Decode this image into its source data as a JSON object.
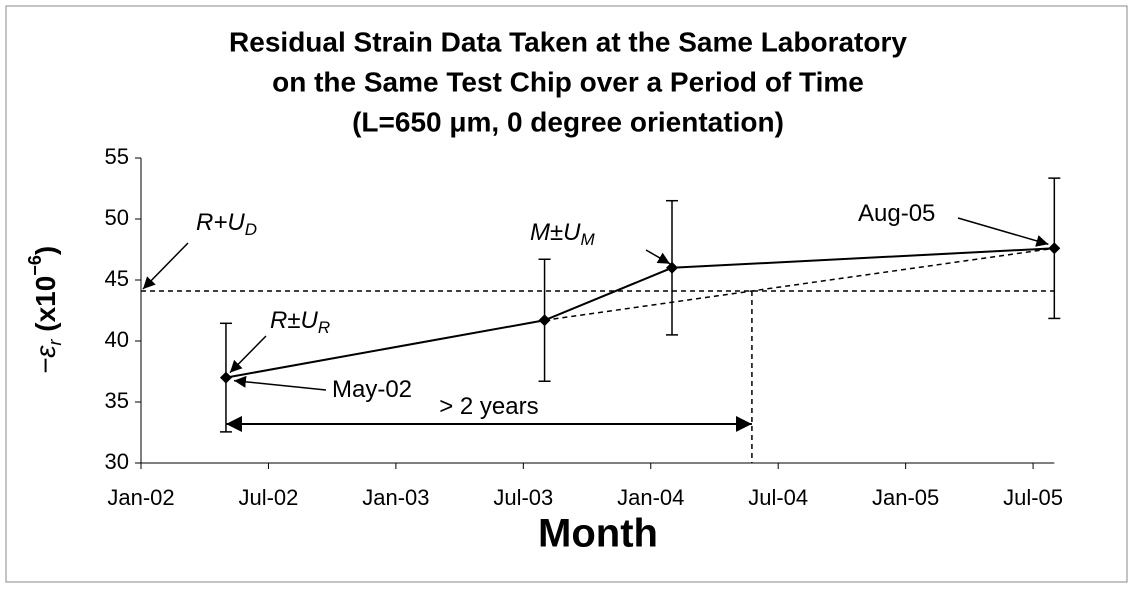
{
  "chart_data": {
    "type": "line",
    "title": [
      "Residual Strain Data Taken at the Same Laboratory",
      "on the Same Test Chip over a Period of Time",
      "(L=650 μm, 0 degree orientation)"
    ],
    "xlabel": "Month",
    "ylabel": {
      "pre": "−ε",
      "sub": "r",
      "mid": " (x10",
      "sup": "−6",
      "end": ")"
    },
    "x": [
      "May-02",
      "Aug-03",
      "Feb-04",
      "Aug-05"
    ],
    "series": [
      {
        "values": [
          37.0,
          41.7,
          46.0,
          47.6
        ],
        "errors": [
          4.45,
          5.0,
          5.5,
          5.75
        ],
        "color": "#000000"
      }
    ],
    "xlim": [
      "Jan-02",
      "Aug-05"
    ],
    "xticks": [
      "Jan-02",
      "Jul-02",
      "Jan-03",
      "Jul-03",
      "Jan-04",
      "Jul-04",
      "Jan-05",
      "Jul-05"
    ],
    "ylim": [
      30,
      55
    ],
    "yticks": [
      30,
      35,
      40,
      45,
      50,
      55
    ],
    "reference": {
      "value": 44.1,
      "main": "R+U",
      "sub": "D"
    },
    "annotations": [
      {
        "main": "R±U",
        "sub": "R"
      },
      {
        "main": "May-02"
      },
      {
        "main": "M±U",
        "sub": "M"
      },
      {
        "main": "Aug-05"
      },
      {
        "main": "> 2 years"
      }
    ]
  }
}
